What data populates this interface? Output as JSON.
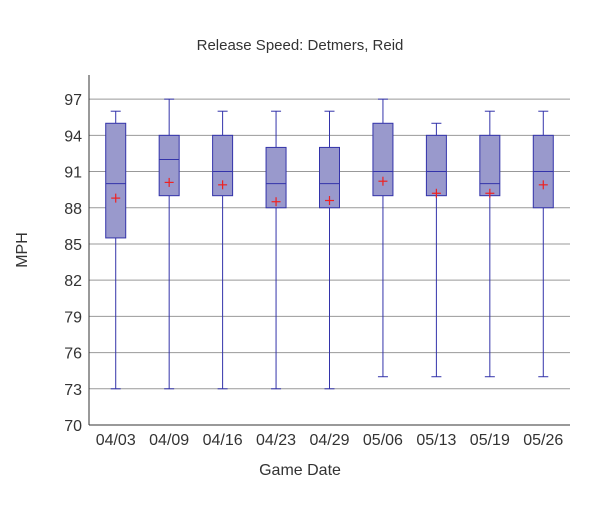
{
  "chart_data": {
    "type": "boxplot",
    "title": "Release Speed: Detmers, Reid",
    "xlabel": "Game Date",
    "ylabel": "MPH",
    "ylim": [
      70,
      97
    ],
    "yticks": [
      70,
      73,
      76,
      79,
      82,
      85,
      88,
      91,
      94,
      97
    ],
    "grid": true,
    "colors": {
      "box_fill": "#9999cc",
      "box_stroke": "#3333aa",
      "mean_marker": "#ee2222",
      "grid": "#999999",
      "axis": "#333333"
    },
    "categories": [
      "04/03",
      "04/09",
      "04/16",
      "04/23",
      "04/29",
      "05/06",
      "05/13",
      "05/19",
      "05/26"
    ],
    "boxes": [
      {
        "date": "04/03",
        "min": 73,
        "q1": 85.5,
        "median": 90,
        "q3": 95,
        "max": 96,
        "mean": 88.8
      },
      {
        "date": "04/09",
        "min": 73,
        "q1": 89,
        "median": 92,
        "q3": 94,
        "max": 97,
        "mean": 90.1
      },
      {
        "date": "04/16",
        "min": 73,
        "q1": 89,
        "median": 91,
        "q3": 94,
        "max": 96,
        "mean": 89.9
      },
      {
        "date": "04/23",
        "min": 73,
        "q1": 88,
        "median": 90,
        "q3": 93,
        "max": 96,
        "mean": 88.5
      },
      {
        "date": "04/29",
        "min": 73,
        "q1": 88,
        "median": 90,
        "q3": 93,
        "max": 96,
        "mean": 88.6
      },
      {
        "date": "05/06",
        "min": 74,
        "q1": 89,
        "median": 91,
        "q3": 95,
        "max": 97,
        "mean": 90.2
      },
      {
        "date": "05/13",
        "min": 74,
        "q1": 89,
        "median": 91,
        "q3": 94,
        "max": 95,
        "mean": 89.2
      },
      {
        "date": "05/19",
        "min": 74,
        "q1": 89,
        "median": 90,
        "q3": 94,
        "max": 96,
        "mean": 89.2
      },
      {
        "date": "05/26",
        "min": 74,
        "q1": 88,
        "median": 91,
        "q3": 94,
        "max": 96,
        "mean": 89.9
      }
    ]
  }
}
